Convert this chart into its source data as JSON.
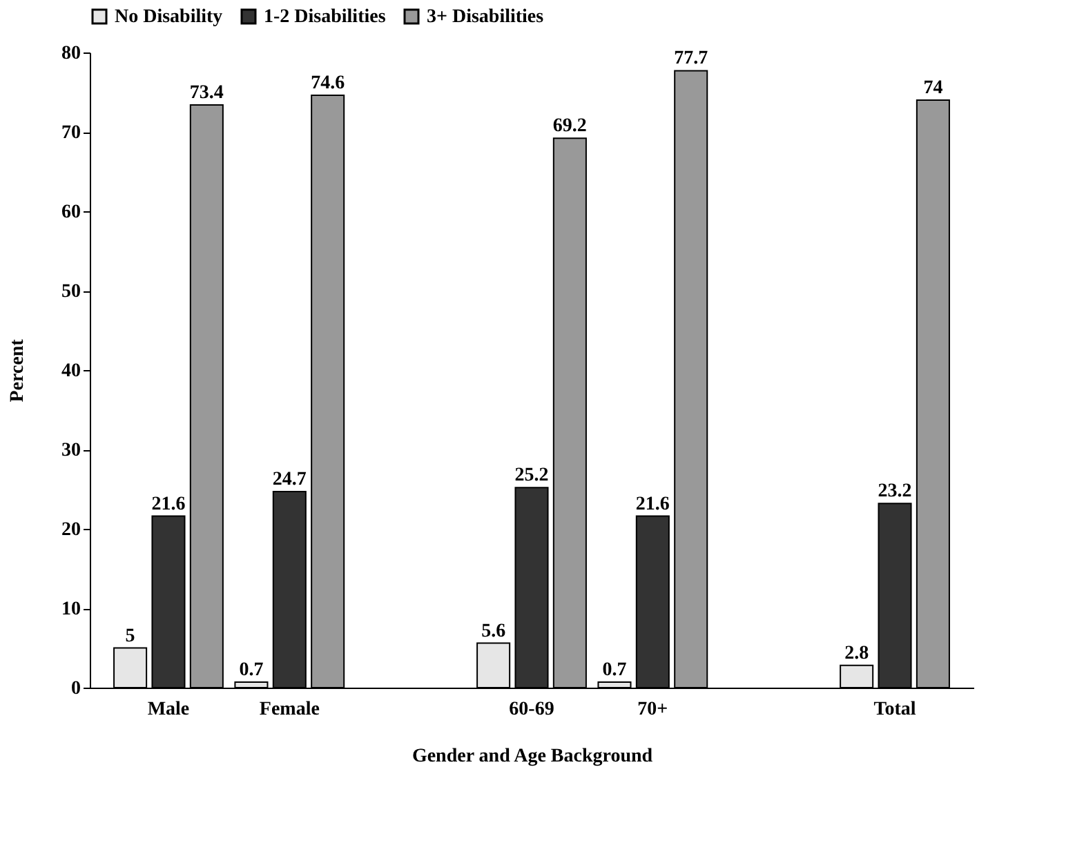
{
  "chart_data": {
    "type": "bar",
    "xlabel": "Gender and Age Background",
    "ylabel": "Percent",
    "categories": [
      "Male",
      "Female",
      null,
      "60-69",
      "70+",
      null,
      "Total"
    ],
    "series": [
      {
        "name": "No Disability",
        "color": "#e6e6e6",
        "values": [
          5,
          0.7,
          null,
          5.6,
          0.7,
          null,
          2.8
        ]
      },
      {
        "name": "1-2 Disabilities",
        "color": "#333333",
        "values": [
          21.6,
          24.7,
          null,
          25.2,
          21.6,
          null,
          23.2
        ]
      },
      {
        "name": "3+ Disabilities",
        "color": "#999999",
        "values": [
          73.4,
          74.6,
          null,
          69.2,
          77.7,
          null,
          74
        ]
      }
    ],
    "ylim": [
      0,
      80
    ],
    "yticks": [
      0,
      10,
      20,
      30,
      40,
      50,
      60,
      70,
      80
    ],
    "grid": false,
    "legend": "top",
    "data_labels": true
  }
}
